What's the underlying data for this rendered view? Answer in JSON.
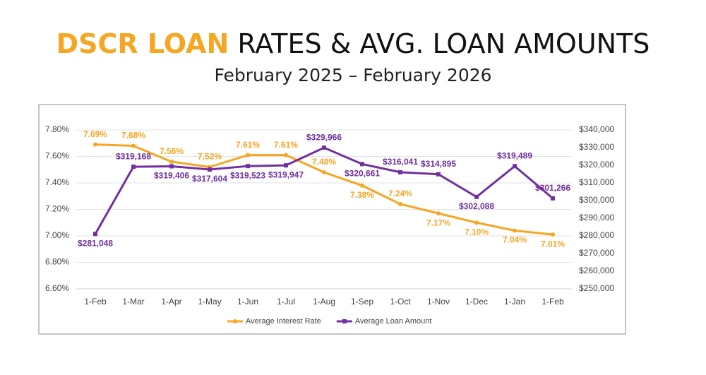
{
  "chart_data": {
    "type": "line",
    "title_highlight": "DSCR LOAN",
    "title": "RATES & AVG. LOAN AMOUNTS",
    "subtitle": "February 2025 – February 2026",
    "categories": [
      "1-Feb",
      "1-Mar",
      "1-Apr",
      "1-May",
      "1-Jun",
      "1-Jul",
      "1-Aug",
      "1-Sep",
      "1-Oct",
      "1-Nov",
      "1-Dec",
      "1-Jan",
      "1-Feb"
    ],
    "series": [
      {
        "name": "Average Interest Rate",
        "color": "#f5a623",
        "marker": "circle",
        "values": [
          7.69,
          7.68,
          7.56,
          7.52,
          7.61,
          7.61,
          7.48,
          7.38,
          7.24,
          7.17,
          7.1,
          7.04,
          7.01
        ],
        "value_labels": [
          "7.69%",
          "7.68%",
          "7.56%",
          "7.52%",
          "7.61%",
          "7.61%",
          "7.48%",
          "7.38%",
          "7.24%",
          "7.17%",
          "7.10%",
          "7.04%",
          "7.01%"
        ]
      },
      {
        "name": "Average Loan Amount",
        "color": "#7030a0",
        "marker": "square",
        "axis": "y2",
        "values": [
          281048,
          319168,
          319406,
          317604,
          319523,
          319947,
          329966,
          320661,
          316041,
          314895,
          302088,
          319489,
          301266
        ],
        "value_labels": [
          "$281,048",
          "$319,168",
          "$319,406",
          "$317,604",
          "$319,523",
          "$319,947",
          "$329,966",
          "$320,661",
          "$316,041",
          "$314,895",
          "$302,088",
          "$319,489",
          "$301,266"
        ]
      }
    ],
    "ylim": [
      6.6,
      7.8
    ],
    "yticks": [
      {
        "value": 6.6,
        "label": "6.60%"
      },
      {
        "value": 6.8,
        "label": "6.80%"
      },
      {
        "value": 7.0,
        "label": "7.00%"
      },
      {
        "value": 7.2,
        "label": "7.20%"
      },
      {
        "value": 7.4,
        "label": "7.40%"
      },
      {
        "value": 7.6,
        "label": "7.60%"
      },
      {
        "value": 7.8,
        "label": "7.80%"
      }
    ],
    "y2lim": [
      250000,
      340000
    ],
    "y2ticks": [
      {
        "value": 250000,
        "label": "$250,000"
      },
      {
        "value": 260000,
        "label": "$260,000"
      },
      {
        "value": 270000,
        "label": "$270,000"
      },
      {
        "value": 280000,
        "label": "$280,000"
      },
      {
        "value": 290000,
        "label": "$290,000"
      },
      {
        "value": 300000,
        "label": "$300,000"
      },
      {
        "value": 310000,
        "label": "$310,000"
      },
      {
        "value": 320000,
        "label": "$320,000"
      },
      {
        "value": 330000,
        "label": "$330,000"
      },
      {
        "value": 340000,
        "label": "$340,000"
      }
    ],
    "grid": true,
    "legend": "bottom"
  }
}
